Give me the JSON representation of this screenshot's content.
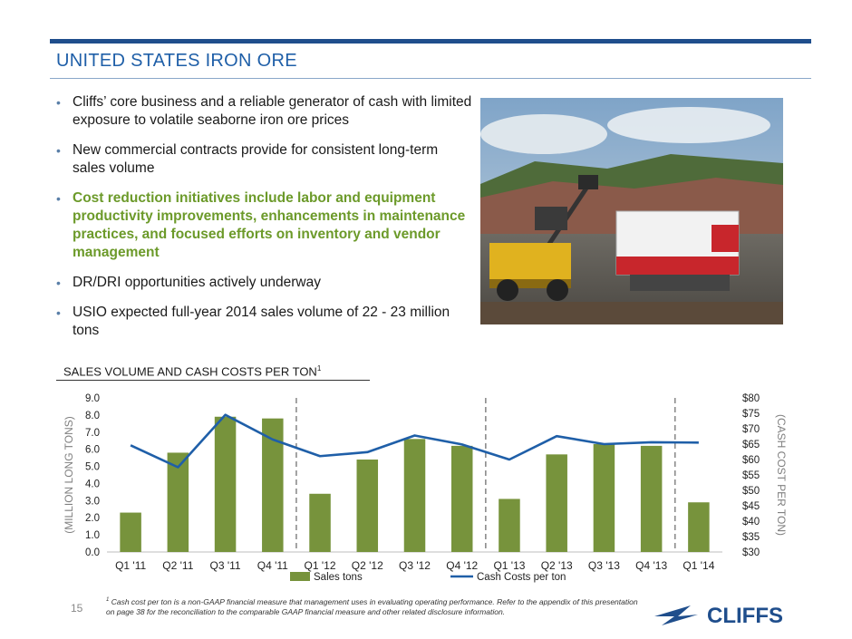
{
  "header": {
    "title": "UNITED STATES IRON ORE"
  },
  "bullets": [
    {
      "text": "Cliffs’ core business and a reliable generator of cash with limited exposure to volatile seaborne iron ore prices",
      "highlight": false
    },
    {
      "text": "New commercial contracts provide for consistent long-term sales volume",
      "highlight": false
    },
    {
      "text": "Cost reduction initiatives include labor and equipment productivity improvements, enhancements in maintenance practices, and focused efforts on inventory and vendor management",
      "highlight": true
    },
    {
      "text": "DR/DRI opportunities actively underway",
      "highlight": false
    },
    {
      "text": "USIO expected full-year 2014 sales volume of 22 - 23 million tons",
      "highlight": false
    }
  ],
  "section_title": "SALES VOLUME AND CASH COSTS PER TON",
  "section_title_sup": "1",
  "chart_data": {
    "type": "bar",
    "categories": [
      "Q1 '11",
      "Q2 '11",
      "Q3 '11",
      "Q4 '11",
      "Q1 '12",
      "Q2 '12",
      "Q3 '12",
      "Q4 '12",
      "Q1 '13",
      "Q2 '13",
      "Q3 '13",
      "Q4 '13",
      "Q1 '14"
    ],
    "series": [
      {
        "name": "Sales tons",
        "type": "bar",
        "axis": "left",
        "color": "#77933c",
        "values": [
          2.3,
          5.8,
          7.9,
          7.8,
          3.4,
          5.4,
          6.6,
          6.2,
          3.1,
          5.7,
          6.3,
          6.2,
          2.9
        ]
      },
      {
        "name": "Cash Costs per ton",
        "type": "line",
        "axis": "right",
        "color": "#1f5fa8",
        "values": [
          64.6,
          57.5,
          74.5,
          66.5,
          61.1,
          62.4,
          67.8,
          64.9,
          60.0,
          67.6,
          65.0,
          65.6,
          65.5
        ]
      }
    ],
    "ylabel": "(MILLION  LONG TONS)",
    "y2label": "(CASH COST PER TON)",
    "ylim": [
      0,
      9
    ],
    "yticks": [
      "0.0",
      "1.0",
      "2.0",
      "3.0",
      "4.0",
      "5.0",
      "6.0",
      "7.0",
      "8.0",
      "9.0"
    ],
    "y2lim": [
      30,
      80
    ],
    "y2ticks": [
      "$30",
      "$35",
      "$40",
      "$45",
      "$50",
      "$55",
      "$60",
      "$65",
      "$70",
      "$75",
      "$80"
    ],
    "year_dividers_after": [
      "Q4 '11",
      "Q4 '12",
      "Q4 '13"
    ],
    "legend_position": "bottom"
  },
  "footer": {
    "page_number": "15",
    "footnote_mark": "1",
    "footnote": "Cash cost per ton is a non-GAAP financial measure that management uses in evaluating operating performance. Refer to the appendix of this presentation on page 38 for the reconciliation to the comparable GAAP financial measure and other related disclosure information.",
    "logo_text": "CLIFFS"
  },
  "colors": {
    "title_blue": "#1f5fa8",
    "bar_green": "#77933c",
    "highlight_green": "#6c9a2a",
    "logo_blue": "#1f4e8c"
  }
}
